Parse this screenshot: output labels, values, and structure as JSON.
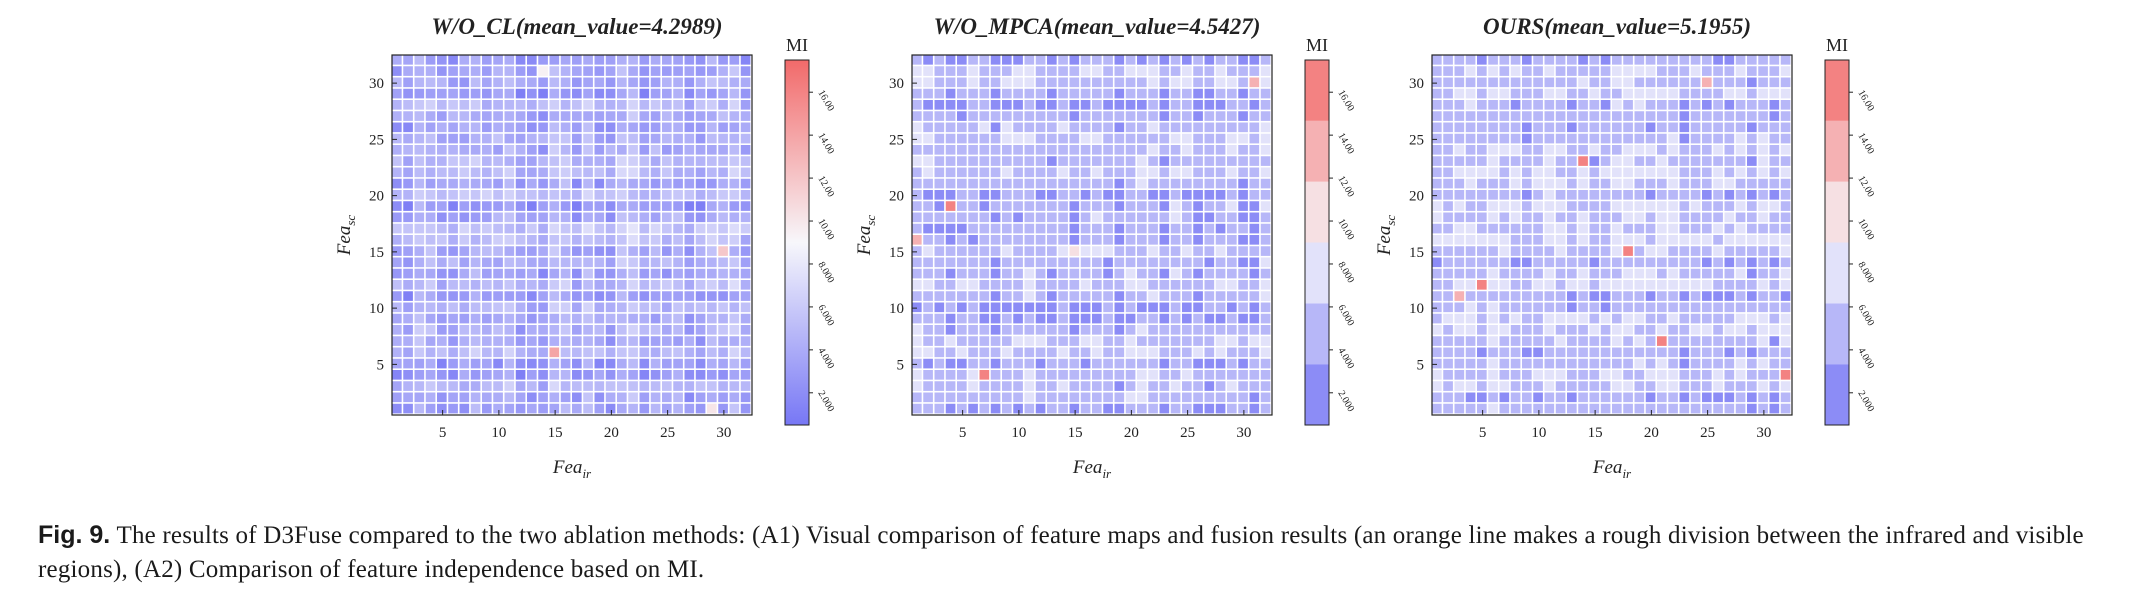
{
  "chart_data": [
    {
      "type": "heatmap",
      "title": "W/O_CL(mean_value=4.2989)",
      "xlabel": "Fea_ir",
      "ylabel": "Fea_sc",
      "x_ticks": [
        5,
        10,
        15,
        20,
        25,
        30
      ],
      "y_ticks": [
        5,
        10,
        15,
        20,
        25,
        30
      ],
      "grid_size": 32,
      "mean_value": 4.2989,
      "colorbar": {
        "label": "MI",
        "ticks": [
          "2.000",
          "4.000",
          "6.000",
          "8.000",
          "10.00",
          "12.00",
          "14.00",
          "16.00"
        ],
        "continuous": true,
        "range": [
          0.5,
          17.5
        ]
      },
      "value_seed": 11
    },
    {
      "type": "heatmap",
      "title": "W/O_MPCA(mean_value=4.5427)",
      "xlabel": "Fea_ir",
      "ylabel": "Fea_sc",
      "x_ticks": [
        5,
        10,
        15,
        20,
        25,
        30
      ],
      "y_ticks": [
        5,
        10,
        15,
        20,
        25,
        30
      ],
      "grid_size": 32,
      "mean_value": 4.5427,
      "colorbar": {
        "label": "MI",
        "ticks": [
          "2.000",
          "4.000",
          "6.000",
          "8.000",
          "10.00",
          "12.00",
          "14.00",
          "16.00"
        ],
        "continuous": false,
        "range": [
          0.5,
          17.5
        ]
      },
      "value_seed": 29
    },
    {
      "type": "heatmap",
      "title": "OURS(mean_value=5.1955)",
      "xlabel": "Fea_ir",
      "ylabel": "Fea_sc",
      "x_ticks": [
        5,
        10,
        15,
        20,
        25,
        30
      ],
      "y_ticks": [
        5,
        10,
        15,
        20,
        25,
        30
      ],
      "grid_size": 32,
      "mean_value": 5.1955,
      "colorbar": {
        "label": "MI",
        "ticks": [
          "2.000",
          "4.000",
          "6.000",
          "8.000",
          "10.00",
          "12.00",
          "14.00",
          "16.00"
        ],
        "continuous": false,
        "range": [
          0.5,
          17.5
        ]
      },
      "value_seed": 47
    }
  ],
  "colors": {
    "low": "#7777f5",
    "mid": "#f7f7fb",
    "high": "#f26a6a"
  },
  "caption": {
    "label": "Fig. 9.",
    "text": "The results of D3Fuse compared to the two ablation methods: (A1) Visual comparison of feature maps and fusion results (an orange line makes a rough division between the infrared and visible regions), (A2) Comparison of feature independence based on MI."
  }
}
